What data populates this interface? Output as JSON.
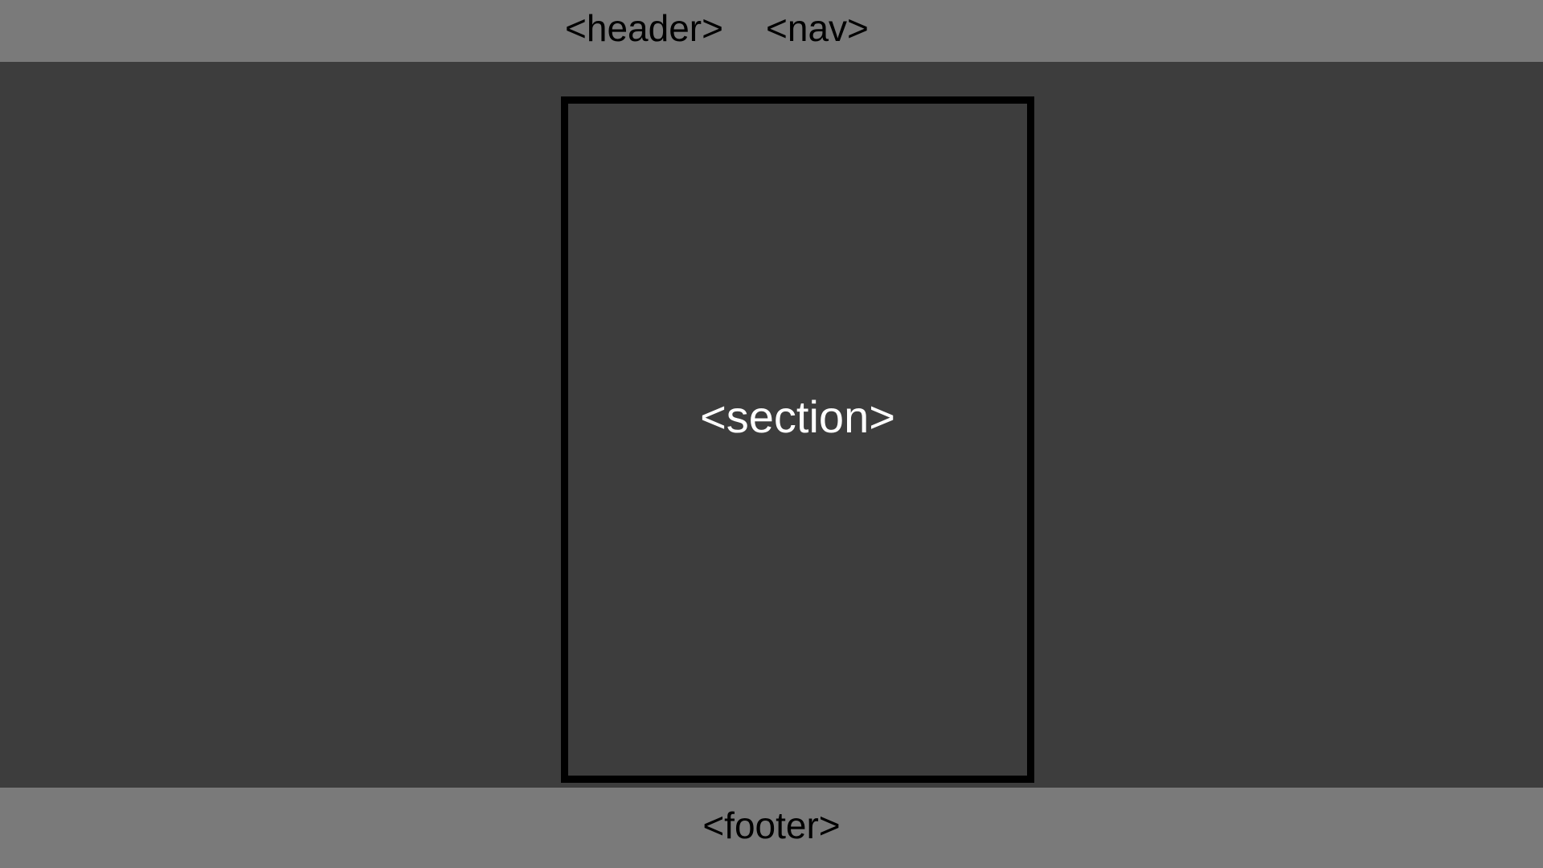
{
  "header": {
    "header_label": "<header>",
    "nav_label": "<nav>"
  },
  "main": {
    "section_label": "<section>"
  },
  "footer": {
    "footer_label": "<footer>"
  },
  "colors": {
    "bar_background": "#7a7a7a",
    "page_background": "#3d3d3d",
    "section_border": "#000000",
    "section_text": "#ffffff",
    "bar_text": "#000000"
  }
}
